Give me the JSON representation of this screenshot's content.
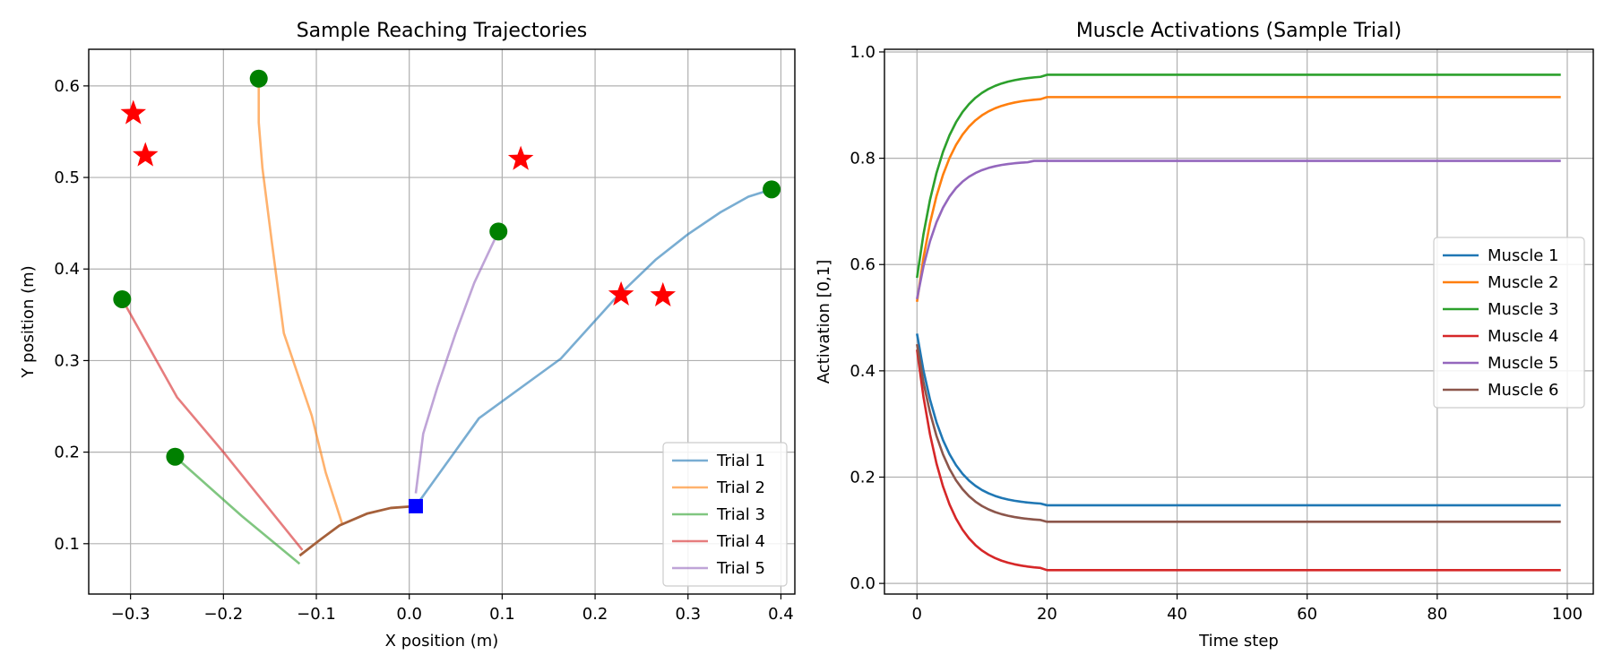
{
  "chart_data": [
    {
      "type": "line",
      "title": "Sample Reaching Trajectories",
      "xlabel": "X position (m)",
      "ylabel": "Y position (m)",
      "xlim": [
        -0.345,
        0.415
      ],
      "ylim": [
        0.045,
        0.64
      ],
      "xticks": [
        -0.3,
        -0.2,
        -0.1,
        0.0,
        0.1,
        0.2,
        0.3,
        0.4
      ],
      "xtick_labels": [
        "−0.3",
        "−0.2",
        "−0.1",
        "0.0",
        "0.1",
        "0.2",
        "0.3",
        "0.4"
      ],
      "yticks": [
        0.1,
        0.2,
        0.3,
        0.4,
        0.5,
        0.6
      ],
      "ytick_labels": [
        "0.1",
        "0.2",
        "0.3",
        "0.4",
        "0.5",
        "0.6"
      ],
      "grid": true,
      "legend_position": "bottom-right",
      "start_point": {
        "x": 0.007,
        "y": 0.141,
        "color": "#0000ff",
        "marker": "square"
      },
      "series": [
        {
          "name": "Trial 1",
          "color": "#1f77b4",
          "points": [
            [
              0.007,
              0.141
            ],
            [
              0.075,
              0.237
            ],
            [
              0.163,
              0.302
            ],
            [
              0.22,
              0.366
            ],
            [
              0.265,
              0.41
            ],
            [
              0.3,
              0.438
            ],
            [
              0.335,
              0.462
            ],
            [
              0.365,
              0.479
            ],
            [
              0.39,
              0.487
            ]
          ],
          "end": [
            0.39,
            0.487
          ]
        },
        {
          "name": "Trial 2",
          "color": "#ff7f0e",
          "points": [
            [
              -0.072,
              0.121
            ],
            [
              -0.09,
              0.178
            ],
            [
              -0.105,
              0.24
            ],
            [
              -0.135,
              0.33
            ],
            [
              -0.148,
              0.43
            ],
            [
              -0.158,
              0.51
            ],
            [
              -0.162,
              0.56
            ],
            [
              -0.162,
              0.608
            ]
          ],
          "end": [
            -0.162,
            0.608
          ]
        },
        {
          "name": "Trial 3",
          "color": "#2ca02c",
          "points": [
            [
              -0.118,
              0.078
            ],
            [
              -0.18,
              0.13
            ],
            [
              -0.252,
              0.195
            ]
          ],
          "end": [
            -0.252,
            0.195
          ]
        },
        {
          "name": "Trial 4",
          "color": "#d62728",
          "points": [
            [
              -0.115,
              0.093
            ],
            [
              -0.2,
              0.2
            ],
            [
              -0.25,
              0.26
            ],
            [
              -0.309,
              0.367
            ]
          ],
          "end": [
            -0.309,
            0.367
          ]
        },
        {
          "name": "Trial 5",
          "color": "#9467bd",
          "points": [
            [
              0.007,
              0.155
            ],
            [
              0.015,
              0.22
            ],
            [
              0.03,
              0.27
            ],
            [
              0.05,
              0.33
            ],
            [
              0.07,
              0.385
            ],
            [
              0.096,
              0.441
            ]
          ],
          "end": [
            0.096,
            0.441
          ]
        }
      ],
      "shared_path": {
        "color": "#a5603a",
        "points": [
          [
            -0.118,
            0.087
          ],
          [
            -0.095,
            0.105
          ],
          [
            -0.075,
            0.12
          ],
          [
            -0.045,
            0.133
          ],
          [
            -0.02,
            0.139
          ],
          [
            0.007,
            0.141
          ]
        ]
      },
      "targets": [
        {
          "x": -0.297,
          "y": 0.57
        },
        {
          "x": -0.284,
          "y": 0.524
        },
        {
          "x": 0.12,
          "y": 0.52
        },
        {
          "x": 0.228,
          "y": 0.372
        },
        {
          "x": 0.273,
          "y": 0.371
        }
      ],
      "target_color": "#ff0000",
      "end_color": "#008000"
    },
    {
      "type": "line",
      "title": "Muscle Activations (Sample Trial)",
      "xlabel": "Time step",
      "ylabel": "Activation [0,1]",
      "xlim": [
        -5,
        104
      ],
      "ylim": [
        -0.02,
        1.005
      ],
      "xticks": [
        0,
        20,
        40,
        60,
        80,
        100
      ],
      "xtick_labels": [
        "0",
        "20",
        "40",
        "60",
        "80",
        "100"
      ],
      "yticks": [
        0.0,
        0.2,
        0.4,
        0.6,
        0.8,
        1.0
      ],
      "ytick_labels": [
        "0.0",
        "0.2",
        "0.4",
        "0.6",
        "0.8",
        "1.0"
      ],
      "grid": true,
      "legend_position": "center-right",
      "series": [
        {
          "name": "Muscle 1",
          "color": "#1f77b4",
          "start": 0.47,
          "end": 0.147,
          "settle": 19
        },
        {
          "name": "Muscle 2",
          "color": "#ff7f0e",
          "start": 0.53,
          "end": 0.915,
          "settle": 19
        },
        {
          "name": "Muscle 3",
          "color": "#2ca02c",
          "start": 0.575,
          "end": 0.957,
          "settle": 19
        },
        {
          "name": "Muscle 4",
          "color": "#d62728",
          "start": 0.44,
          "end": 0.025,
          "settle": 19
        },
        {
          "name": "Muscle 5",
          "color": "#9467bd",
          "start": 0.535,
          "end": 0.795,
          "settle": 17
        },
        {
          "name": "Muscle 6",
          "color": "#8c564b",
          "start": 0.45,
          "end": 0.116,
          "settle": 19
        }
      ],
      "n_steps": 100
    }
  ]
}
